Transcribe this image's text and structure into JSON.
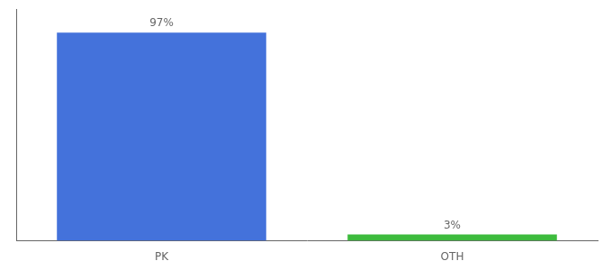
{
  "chart_data": {
    "type": "bar",
    "categories": [
      "PK",
      "OTH"
    ],
    "values": [
      97,
      3
    ],
    "value_labels": [
      "97%",
      "3%"
    ],
    "colors": [
      "#4472db",
      "#3dbb3d"
    ],
    "ylim": [
      0,
      108
    ],
    "grid": false,
    "data_labels": true,
    "tick_labels": "x"
  }
}
